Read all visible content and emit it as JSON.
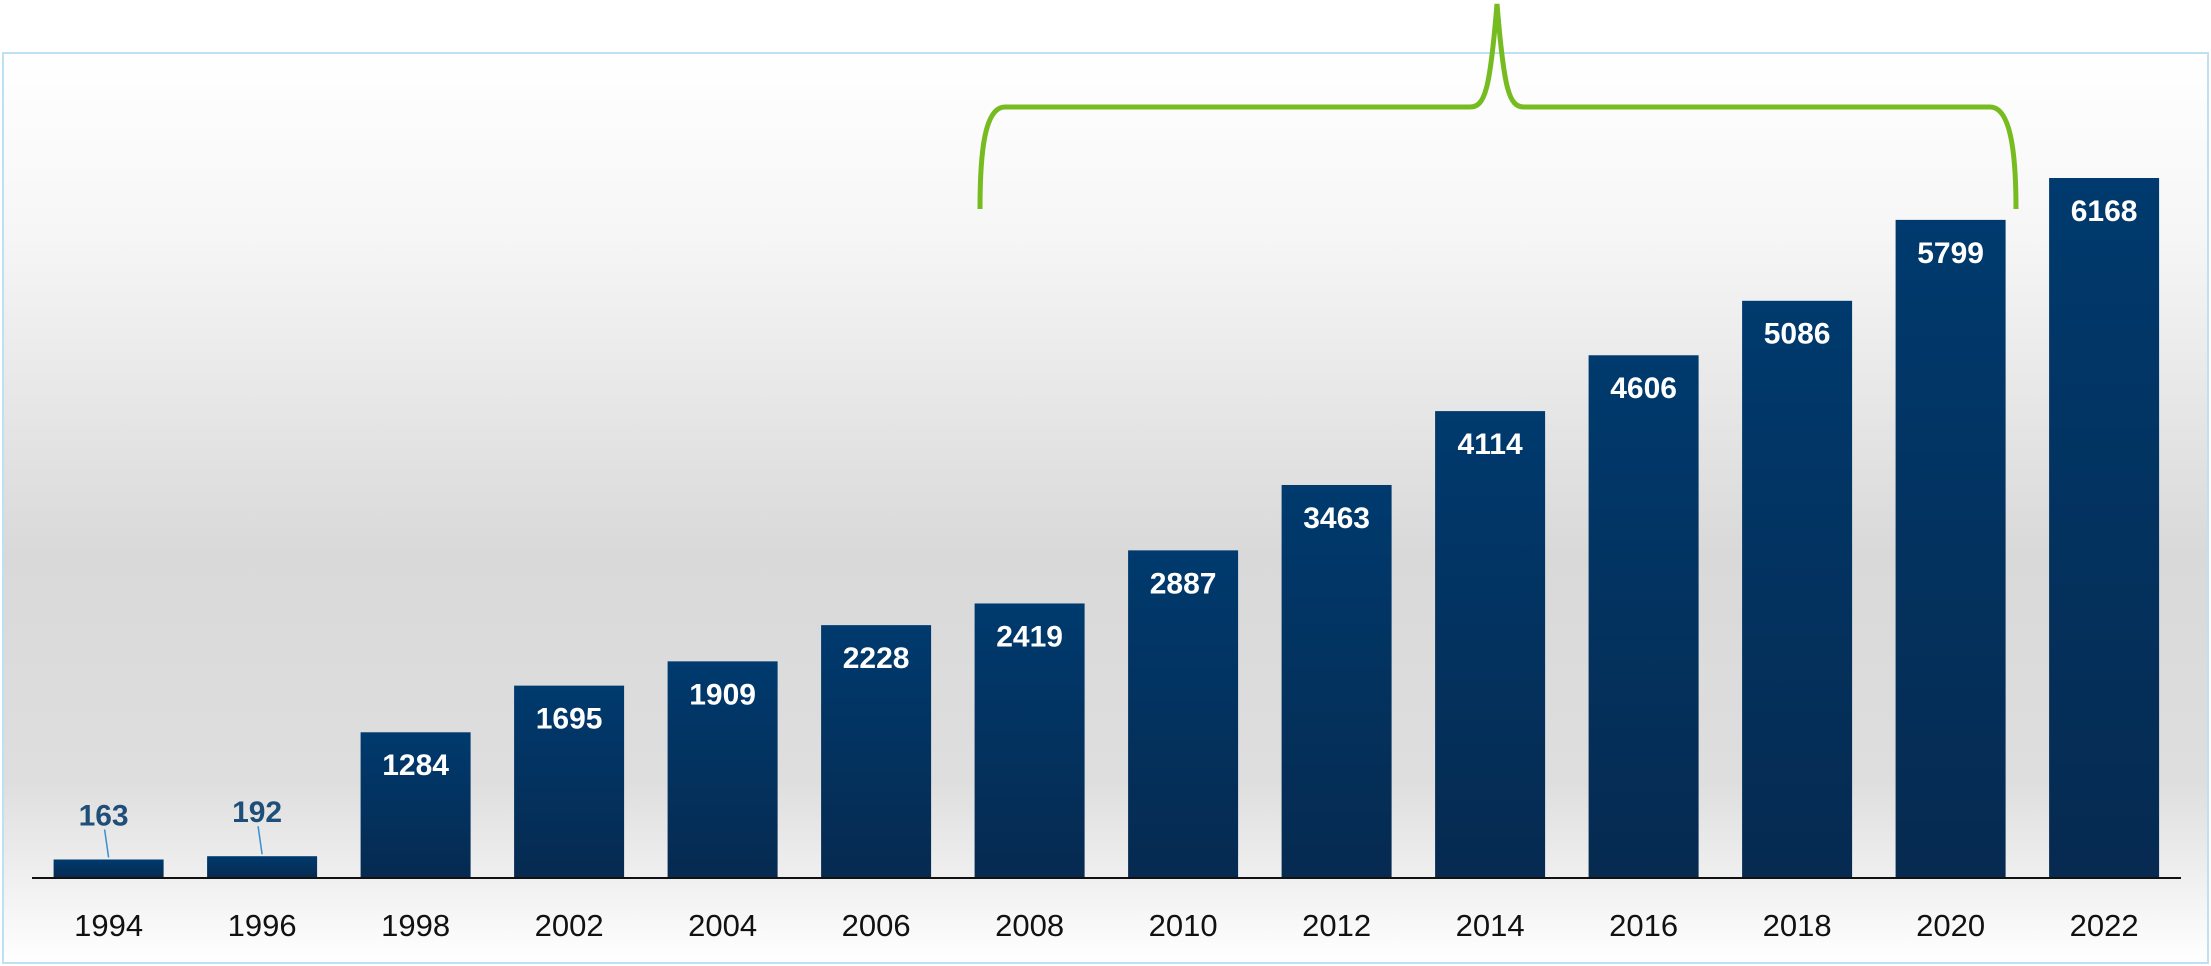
{
  "chart_data": {
    "type": "bar",
    "categories": [
      "1994",
      "1996",
      "1998",
      "2002",
      "2004",
      "2006",
      "2008",
      "2010",
      "2012",
      "2014",
      "2016",
      "2018",
      "2020",
      "2022"
    ],
    "values": [
      163,
      192,
      1284,
      1695,
      1909,
      2228,
      2419,
      2887,
      3463,
      4114,
      4606,
      5086,
      5799,
      6168
    ],
    "color": "#003a6e",
    "grid": false
  }
}
